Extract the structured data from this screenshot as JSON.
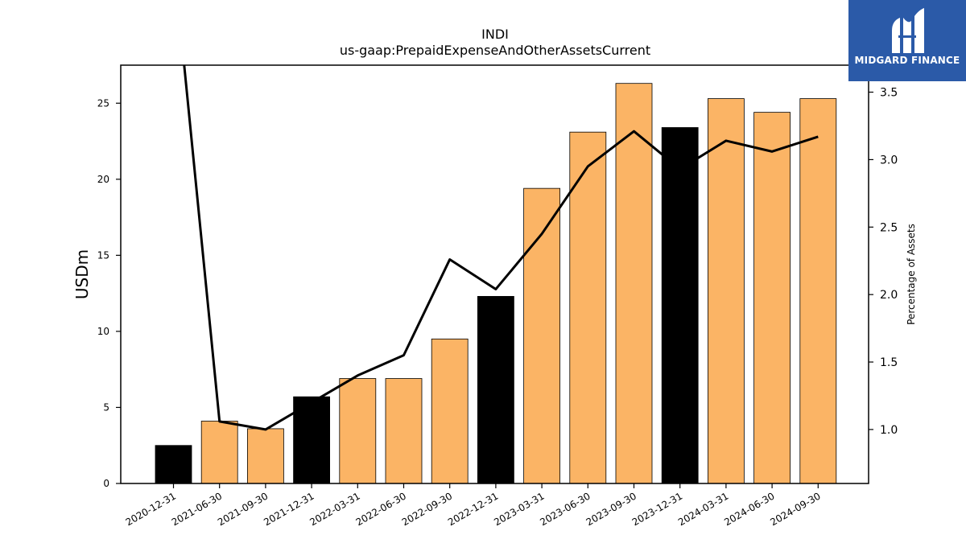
{
  "chart_data": {
    "type": "bar",
    "title": "INDI",
    "subtitle": "us-gaap:PrepaidExpenseAndOtherAssetsCurrent",
    "ylabel": "USDm",
    "y2label": "Percentage of Assets",
    "ylim": [
      0,
      27.5
    ],
    "y2lim": [
      0.6,
      3.7
    ],
    "yticks": [
      "0",
      "5",
      "10",
      "15",
      "20",
      "25"
    ],
    "y2ticks": [
      "1.0",
      "1.5",
      "2.0",
      "2.5",
      "3.0",
      "3.5"
    ],
    "categories": [
      "2020-12-31",
      "2021-06-30",
      "2021-09-30",
      "2021-12-31",
      "2022-03-31",
      "2022-06-30",
      "2022-09-30",
      "2022-12-31",
      "2023-03-31",
      "2023-06-30",
      "2023-09-30",
      "2023-12-31",
      "2024-03-31",
      "2024-06-30",
      "2024-09-30"
    ],
    "series": [
      {
        "kind": "bar",
        "values": [
          2.5,
          4.1,
          3.6,
          5.7,
          6.9,
          6.9,
          9.5,
          12.3,
          19.4,
          23.1,
          26.3,
          23.4,
          25.3,
          24.4,
          25.3
        ],
        "colors": [
          "#000000",
          "#fbb465",
          "#fbb465",
          "#000000",
          "#fbb465",
          "#fbb465",
          "#fbb465",
          "#000000",
          "#fbb465",
          "#fbb465",
          "#fbb465",
          "#000000",
          "#fbb465",
          "#fbb465",
          "#fbb465"
        ]
      },
      {
        "kind": "line",
        "axis": "right",
        "values": [
          4.5,
          1.06,
          1.0,
          1.2,
          1.4,
          1.55,
          2.26,
          2.04,
          2.45,
          2.95,
          3.21,
          2.93,
          3.14,
          3.06,
          3.17
        ],
        "color": "#000000"
      }
    ],
    "grid": false
  },
  "logo": {
    "text": "MIDGARD FINANCE",
    "background": "#2b5aa8"
  }
}
